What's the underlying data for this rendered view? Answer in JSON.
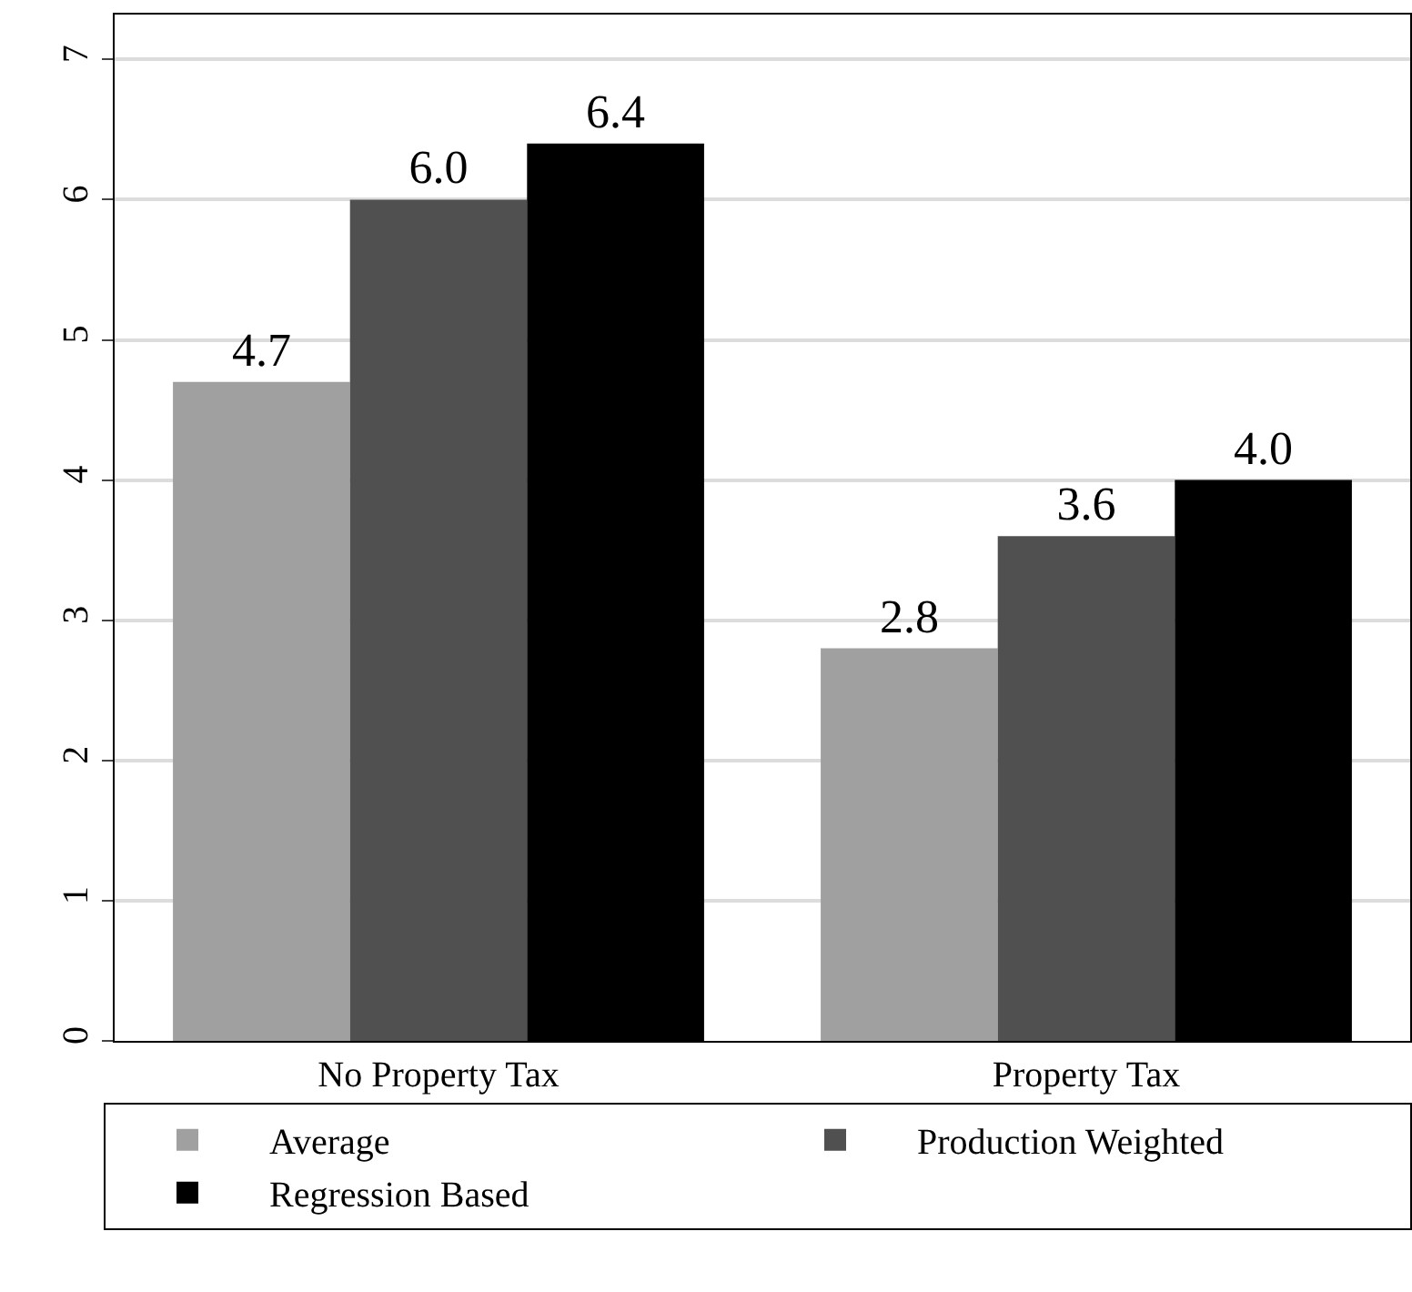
{
  "chart_data": {
    "type": "bar",
    "categories": [
      "No Property Tax",
      "Property Tax"
    ],
    "series": [
      {
        "name": "Average",
        "color": "#a0a0a0",
        "values": [
          4.7,
          2.8
        ],
        "value_labels": [
          "4.7",
          "2.8"
        ]
      },
      {
        "name": "Production Weighted",
        "color": "#505050",
        "values": [
          6.0,
          3.6
        ],
        "value_labels": [
          "6.0",
          "3.6"
        ]
      },
      {
        "name": "Regression Based",
        "color": "#000000",
        "values": [
          6.4,
          4.0
        ],
        "value_labels": [
          "6.4",
          "4.0"
        ]
      }
    ],
    "ylim": [
      0,
      7.32
    ],
    "yticks": [
      0,
      1,
      2,
      3,
      4,
      5,
      6,
      7
    ],
    "grid": "y",
    "legend": "bottom"
  }
}
